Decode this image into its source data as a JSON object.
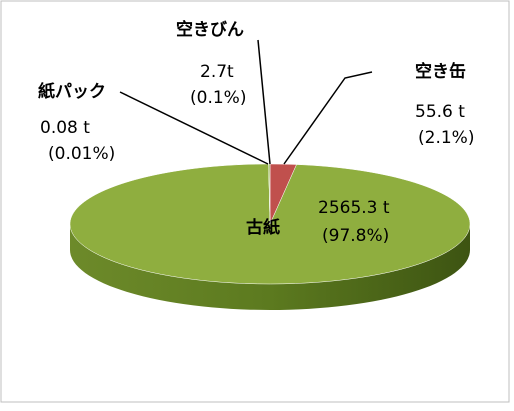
{
  "chart_data": {
    "type": "pie",
    "categories": [
      "空き缶",
      "古紙",
      "紙パック",
      "空きびん"
    ],
    "values": [
      55.6,
      2565.3,
      0.08,
      2.7
    ],
    "value_labels": [
      "55.6 t",
      "2565.3 t",
      "0.08 t",
      "2.7t"
    ],
    "percent_labels": [
      "(2.1%)",
      "(97.8%)",
      "(0.01%)",
      "(0.1%)"
    ],
    "colors": [
      "#c0504d",
      "#8fae3f",
      "#4f81bd",
      "#9bbb59"
    ]
  }
}
